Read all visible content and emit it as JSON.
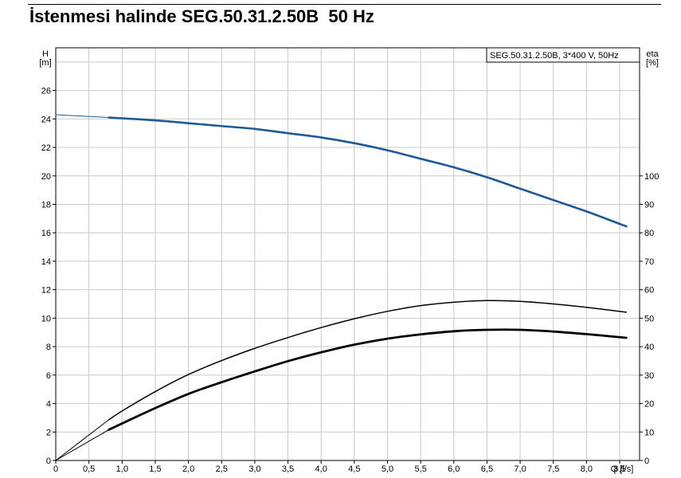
{
  "title": "İstenmesi halinde SEG.50.31.2.50B  50 Hz",
  "chart_data": {
    "type": "line",
    "legend_text": "SEG.50.31.2.50B, 3*400 V, 50Hz",
    "legend_placement": "top-right",
    "grid": true,
    "x_axis": {
      "label": "Q [l/s]",
      "range": [
        0,
        8.8
      ],
      "ticks": [
        0,
        0.5,
        1.0,
        1.5,
        2.0,
        2.5,
        3.0,
        3.5,
        4.0,
        4.5,
        5.0,
        5.5,
        6.0,
        6.5,
        7.0,
        7.5,
        8.0,
        8.5
      ],
      "tick_labels": [
        "0",
        "0,5",
        "1,0",
        "1,5",
        "2,0",
        "2,5",
        "3,0",
        "3,5",
        "4,0",
        "4,5",
        "5,0",
        "5,5",
        "6,0",
        "6,5",
        "7,0",
        "7,5",
        "8,0",
        "8,5"
      ]
    },
    "y_axis_left": {
      "label_line1": "H",
      "label_line2": "[m]",
      "range": [
        0,
        29
      ],
      "ticks": [
        0,
        2,
        4,
        6,
        8,
        10,
        12,
        14,
        16,
        18,
        20,
        22,
        24,
        26
      ]
    },
    "y_axis_right": {
      "label_line1": "eta",
      "label_line2": "[%]",
      "range": [
        0,
        145
      ],
      "ticks": [
        0,
        10,
        20,
        30,
        40,
        50,
        60,
        70,
        80,
        90,
        100
      ]
    },
    "series": [
      {
        "color": "#1c5a96",
        "axis": "left",
        "width": 2.6,
        "x": [
          0,
          0.8,
          1.5,
          2.0,
          2.5,
          3.0,
          3.5,
          4.0,
          4.5,
          5.0,
          5.5,
          6.0,
          6.5,
          7.0,
          7.5,
          8.0,
          8.6
        ],
        "y": [
          24.3,
          24.1,
          23.9,
          23.7,
          23.5,
          23.3,
          23.0,
          22.7,
          22.3,
          21.8,
          21.2,
          20.6,
          19.9,
          19.1,
          18.3,
          17.5,
          16.45
        ]
      },
      {
        "color": "#000000",
        "axis": "right",
        "width": 1.5,
        "x": [
          0,
          0.8,
          1.0,
          1.5,
          2.0,
          2.5,
          3.0,
          3.5,
          4.0,
          4.5,
          5.0,
          5.5,
          6.0,
          6.5,
          7.0,
          7.5,
          8.0,
          8.6
        ],
        "y": [
          0,
          14.3,
          17.4,
          24.2,
          30.2,
          35.1,
          39.4,
          43.2,
          46.7,
          49.8,
          52.4,
          54.4,
          55.6,
          56.2,
          55.9,
          55.0,
          53.8,
          52.1
        ]
      },
      {
        "color": "#000000",
        "axis": "right",
        "width": 2.8,
        "x": [
          0,
          0.8,
          1.0,
          1.5,
          2.0,
          2.5,
          3.0,
          3.5,
          4.0,
          4.5,
          5.0,
          5.5,
          6.0,
          6.5,
          7.0,
          7.5,
          8.0,
          8.6
        ],
        "y": [
          0,
          10.8,
          13.0,
          18.4,
          23.4,
          27.5,
          31.3,
          34.9,
          38.0,
          40.7,
          42.8,
          44.3,
          45.4,
          45.9,
          45.9,
          45.3,
          44.4,
          43.1
        ]
      }
    ]
  }
}
